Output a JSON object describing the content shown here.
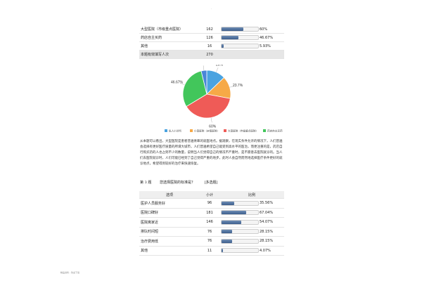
{
  "top_mark": "-",
  "table1": {
    "rows": [
      {
        "option": "大型医院（市级重点医院）",
        "count": 162,
        "percent_label": "60%",
        "fraction": 0.6
      },
      {
        "option": "药店自主买药",
        "count": 126,
        "percent_label": "46.67%",
        "fraction": 0.4667
      },
      {
        "option": "其他",
        "count": 16,
        "percent_label": "5.93%",
        "fraction": 0.0593
      }
    ],
    "total_label": "本题有效填写人次",
    "total_value": 270
  },
  "chart_data": {
    "type": "pie",
    "slices": [
      {
        "name": "私人小诊所",
        "value": 20,
        "label": "20%",
        "color": "#4aa3e0"
      },
      {
        "name": "小型医院（乡镇医院）",
        "value": 23.7,
        "label": "23.7%",
        "color": "#f6a947"
      },
      {
        "name": "大型医院（市级重点医院）",
        "value": 60,
        "label": "60%",
        "color": "#ef5b57"
      },
      {
        "name": "药店自主买药",
        "value": 46.67,
        "label": "46.67%",
        "color": "#42c65b"
      },
      {
        "name": "",
        "value": 5.93,
        "label": "5.93%",
        "color": "#4a86d8"
      }
    ],
    "legend_position": "bottom"
  },
  "paragraph": "从本题可以看出，大型医院是患者普遍青睐的就医地点。据观察，在现实条件允许的情况下，人们普遍会选择有更好医疗质量的所谓大城市，人们普遍希望自己能受到高水平的医治，而更注重的是，药店自行购买药的人也占到不少的数量，说明当人们觉得自己的情况不严重时，是不愿意去医院就诊的。当人们去医院就诊时，人们可能已经到了自己觉得严重的地步，此时人会自然而然地选择医疗条件更好的就诊地点，希望得到较好的治疗来快速恢复。",
  "question3": {
    "number": "第 3 题",
    "title": "您选择医院的标准是？",
    "type": "[多选题]",
    "headers": {
      "option": "选项",
      "count": "小计",
      "ratio": "比例"
    },
    "rows": [
      {
        "option": "医护人员服务好",
        "count": 96,
        "percent_label": "35.56%",
        "fraction": 0.3556
      },
      {
        "option": "医院口碑好",
        "count": 181,
        "percent_label": "67.04%",
        "fraction": 0.6704
      },
      {
        "option": "医院离家近",
        "count": 146,
        "percent_label": "54.07%",
        "fraction": 0.5407
      },
      {
        "option": "排队时间短",
        "count": 76,
        "percent_label": "28.15%",
        "fraction": 0.2815
      },
      {
        "option": "治疗费用低",
        "count": 76,
        "percent_label": "28.15%",
        "fraction": 0.2815
      },
      {
        "option": "其他",
        "count": 11,
        "percent_label": "4.07%",
        "fraction": 0.0407
      }
    ]
  },
  "footer": "精品资料 - 欢迎下载"
}
